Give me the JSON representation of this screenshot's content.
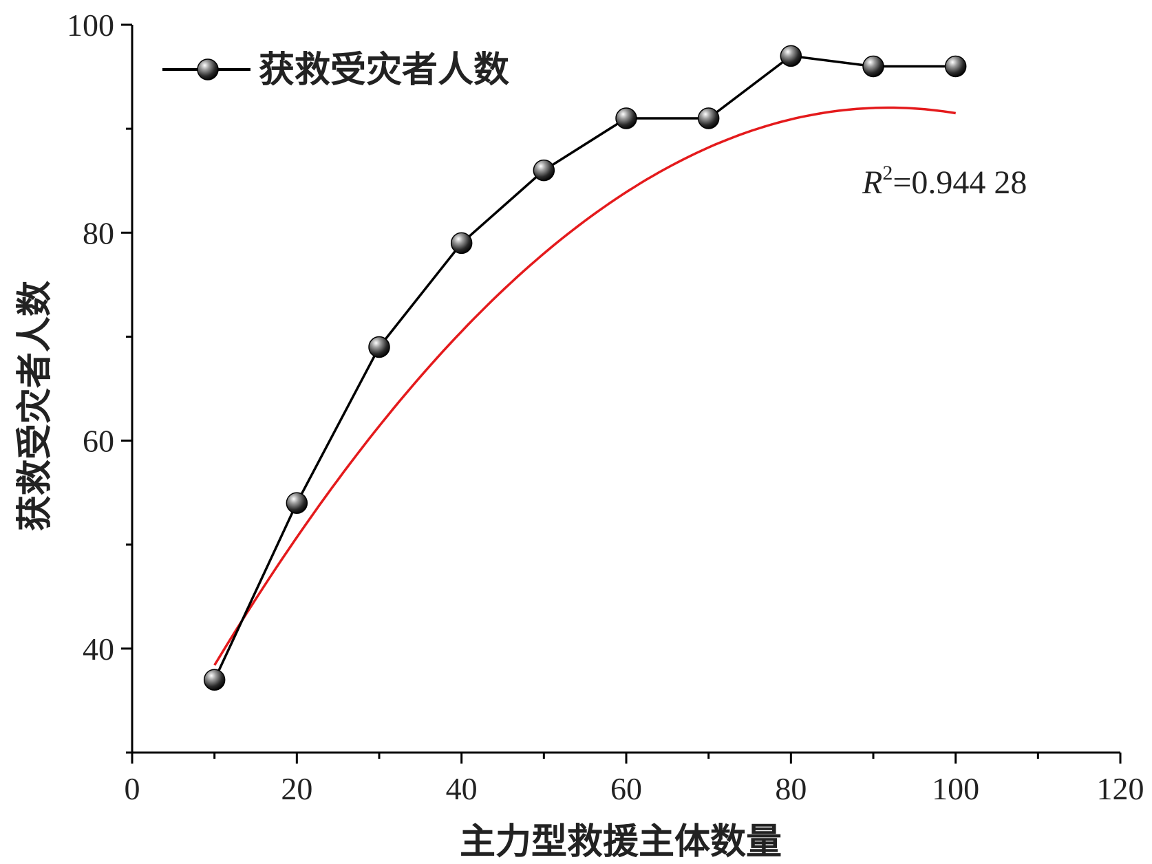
{
  "chart_data": {
    "type": "line",
    "xlabel": "主力型救援主体数量",
    "ylabel": "获救受灾者人数",
    "xlim": [
      0,
      120
    ],
    "ylim": [
      30,
      100
    ],
    "x_ticks": [
      0,
      20,
      40,
      60,
      80,
      100,
      120
    ],
    "y_ticks": [
      40,
      60,
      80,
      100
    ],
    "grid": false,
    "legend_position": "top-left",
    "series": [
      {
        "name": "获救受灾者人数",
        "color": "#000000",
        "marker": "sphere",
        "x": [
          10,
          20,
          30,
          40,
          50,
          60,
          70,
          80,
          90,
          100
        ],
        "y": [
          37,
          54,
          69,
          79,
          86,
          91,
          91,
          97,
          96,
          96
        ]
      }
    ],
    "fit": {
      "type": "quadratic",
      "color": "#e41a1c",
      "coefficients": {
        "a": -0.008,
        "b": 1.47,
        "c": 24.5
      },
      "x_range": [
        10,
        100
      ],
      "annotation": {
        "r_symbol": "R",
        "exponent": "2",
        "value_text": "=0.944 28"
      }
    }
  }
}
